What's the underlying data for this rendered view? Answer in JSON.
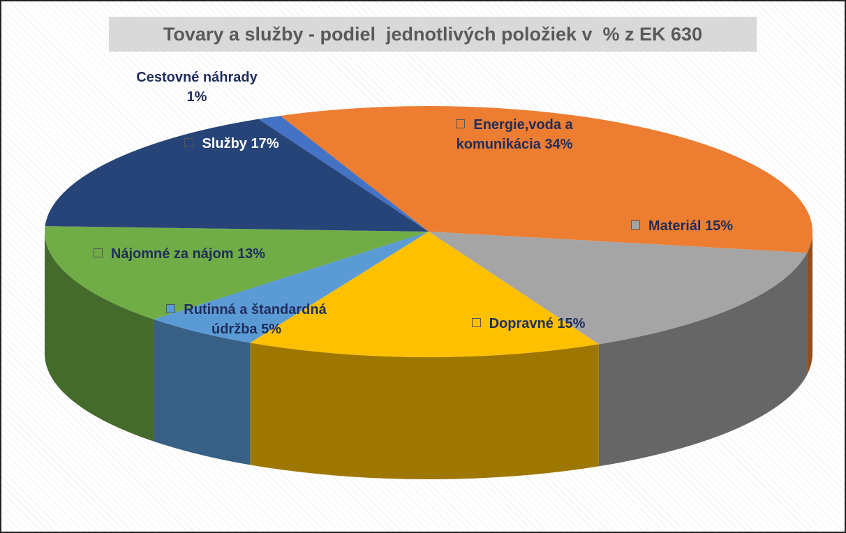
{
  "chart_data": {
    "type": "pie",
    "title": "Tovary a služby - podiel  jednotlivých položiek v  % z EK 630",
    "categories": [
      "Energie,voda a komunikácia",
      "Materiál",
      "Dopravné",
      "Rutinná a štandardná údržba",
      "Nájomné za nájom",
      "Služby",
      "Cestovné náhrady"
    ],
    "values": [
      34,
      15,
      15,
      5,
      13,
      17,
      1
    ],
    "value_labels": [
      "34%",
      "15%",
      "15%",
      "5%",
      "13%",
      "17%",
      "1%"
    ],
    "colors": [
      "#ed7d31",
      "#a5a5a5",
      "#ffc000",
      "#5b9bd5",
      "#70ad47",
      "#264478",
      "#4472c4"
    ]
  }
}
